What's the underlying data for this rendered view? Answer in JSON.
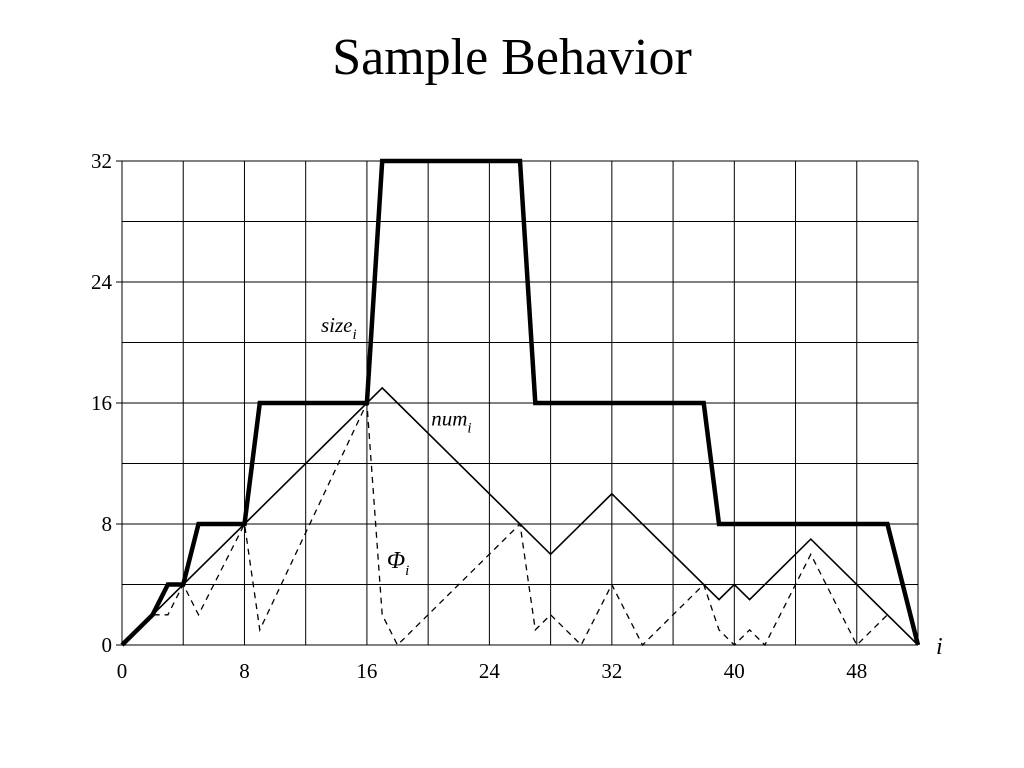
{
  "slide": {
    "title": "Sample Behavior"
  },
  "chart_data": {
    "type": "line",
    "title": "",
    "xlabel": "i",
    "ylabel": "",
    "xlim": [
      0,
      52
    ],
    "ylim": [
      0,
      32
    ],
    "x_ticks": [
      0,
      8,
      16,
      24,
      32,
      40,
      48
    ],
    "y_ticks": [
      0,
      8,
      16,
      24,
      32
    ],
    "x_tick_labels": [
      "0",
      "8",
      "16",
      "24",
      "32",
      "40",
      "48"
    ],
    "y_tick_labels": [
      "0",
      "8",
      "16",
      "24",
      "32"
    ],
    "grid": true,
    "grid_step": 4,
    "series": [
      {
        "name": "size",
        "subscript": "i",
        "style": "thick",
        "points": [
          [
            0,
            0
          ],
          [
            2,
            2
          ],
          [
            3,
            4
          ],
          [
            4,
            4
          ],
          [
            5,
            8
          ],
          [
            8,
            8
          ],
          [
            9,
            16
          ],
          [
            16,
            16
          ],
          [
            17,
            32
          ],
          [
            26,
            32
          ],
          [
            27,
            16
          ],
          [
            38,
            16
          ],
          [
            39,
            8
          ],
          [
            50,
            8
          ],
          [
            52,
            0
          ]
        ]
      },
      {
        "name": "num",
        "subscript": "i",
        "style": "solid",
        "points": [
          [
            0,
            0
          ],
          [
            17,
            17
          ],
          [
            28,
            6
          ],
          [
            32,
            10
          ],
          [
            39,
            3
          ],
          [
            40,
            4
          ],
          [
            41,
            3
          ],
          [
            45,
            7
          ],
          [
            52,
            0
          ]
        ]
      },
      {
        "name": "Φ",
        "subscript": "i",
        "style": "dashed",
        "points": [
          [
            0,
            0
          ],
          [
            2,
            2
          ],
          [
            3,
            2
          ],
          [
            4,
            4
          ],
          [
            5,
            2
          ],
          [
            8,
            8
          ],
          [
            9,
            1
          ],
          [
            16,
            16
          ],
          [
            17,
            2
          ],
          [
            18,
            0
          ],
          [
            26,
            8
          ],
          [
            27,
            1
          ],
          [
            28,
            2
          ],
          [
            30,
            0
          ],
          [
            32,
            4
          ],
          [
            34,
            0
          ],
          [
            38,
            4
          ],
          [
            39,
            1
          ],
          [
            40,
            0
          ],
          [
            41,
            1
          ],
          [
            42,
            0
          ],
          [
            45,
            6
          ],
          [
            48,
            0
          ],
          [
            50,
            2
          ],
          [
            52,
            0
          ]
        ]
      }
    ],
    "annotations": [
      {
        "series": "size",
        "text": "size",
        "subscript": "i",
        "at": [
          13,
          20.7
        ]
      },
      {
        "series": "num",
        "text": "num",
        "subscript": "i",
        "at": [
          20.2,
          14.5
        ]
      },
      {
        "series": "Φ",
        "text": "Φ",
        "subscript": "i",
        "at": [
          17.3,
          5.1
        ]
      }
    ]
  }
}
